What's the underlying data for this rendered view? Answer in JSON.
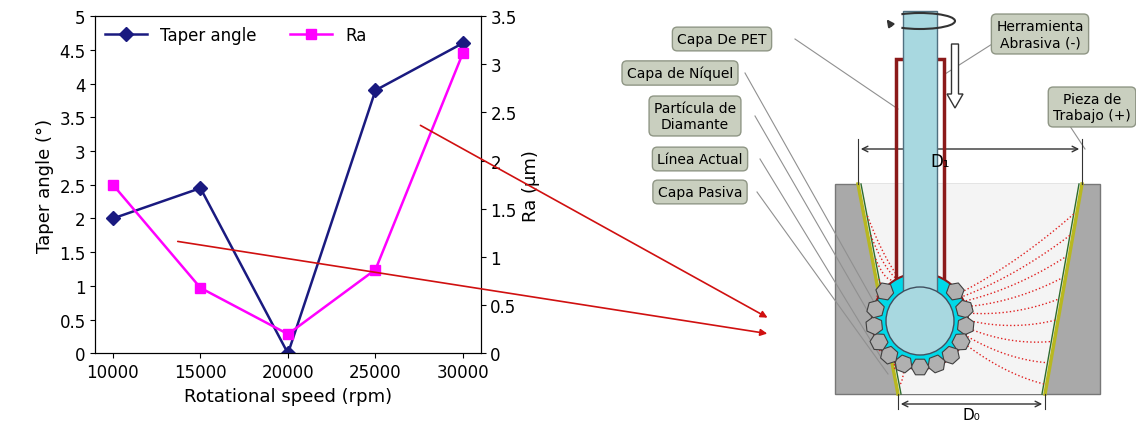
{
  "chart_data": {
    "type": "line",
    "x": [
      10000,
      15000,
      20000,
      25000,
      30000
    ],
    "xlabel": "Rotational speed (rpm)",
    "ylabel": "Taper angle (°)",
    "y2label": "Ra (µm)",
    "xlim": [
      9000,
      31000
    ],
    "xticks": [
      10000,
      15000,
      20000,
      25000,
      30000
    ],
    "ylim": [
      0,
      5
    ],
    "yticks": [
      0,
      0.5,
      1,
      1.5,
      2,
      2.5,
      3,
      3.5,
      4,
      4.5,
      5
    ],
    "y2lim": [
      0,
      3.5
    ],
    "y2ticks": [
      0,
      0.5,
      1,
      1.5,
      2,
      2.5,
      3,
      3.5
    ],
    "legend": "upper left",
    "series": [
      {
        "name": "Taper angle",
        "color": "#1a1a80",
        "marker": "diamond",
        "line_style": "solid",
        "values": [
          2.0,
          2.45,
          0.0,
          3.9,
          4.6
        ]
      },
      {
        "name": "Ra",
        "color": "#ff00ff",
        "marker": "square",
        "line_style": "solid",
        "axis": "y2",
        "values": [
          1.75,
          0.68,
          0.2,
          0.87,
          3.12
        ]
      }
    ]
  },
  "diagram": {
    "labels": {
      "pet": "Capa De PET",
      "nickel": "Capa de Níquel",
      "diamond": "Partícula de\nDiamante",
      "current": "Línea Actual",
      "passive": "Capa Pasiva",
      "tool": "Herramienta\nAbrasiva (-)",
      "workpiece": "Pieza de\nTrabajo (+)"
    },
    "dimensions": {
      "top": "D₁",
      "bottom": "D₀"
    }
  }
}
